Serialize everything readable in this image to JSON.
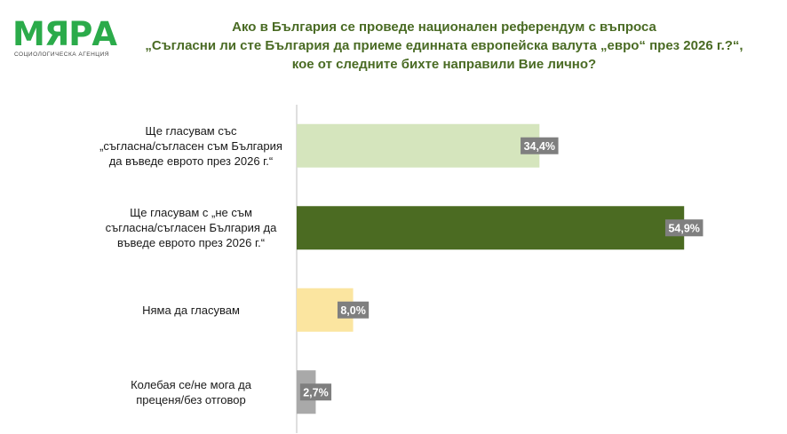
{
  "logo": {
    "word": "МЯРА",
    "subtitle": "СОЦИОЛОГИЧЕСКА АГЕНЦИЯ",
    "color": "#2bab4a"
  },
  "title_lines": [
    "Ако в България се проведе национален референдум с въпроса",
    "„Съгласни ли сте България да приеме единната европейска валута „евро“ през 2026 г.?“,",
    "кое от следните бихте направили Вие лично?"
  ],
  "title_color": "#4a6b24",
  "chart_data": {
    "type": "bar",
    "orientation": "horizontal",
    "categories": [
      "Ще гласувам със „съгласна/съгласен съм България да въведе еврото през 2026 г.“",
      "Ще гласувам с „не съм съгласна/съгласен България да въведе еврото през 2026 г.“",
      "Няма да гласувам",
      "Колебая се/не мога да преценя/без отговор"
    ],
    "category_lines": [
      [
        "Ще гласувам със",
        "„съгласна/съгласен съм България",
        "да въведе еврото през 2026 г.“"
      ],
      [
        "Ще гласувам с „не съм",
        "съгласна/съгласен България да",
        "въведе еврото през 2026 г.“"
      ],
      [
        "Няма да гласувам"
      ],
      [
        "Колебая се/не мога да",
        "преценя/без отговор"
      ]
    ],
    "values": [
      34.4,
      54.9,
      8.0,
      2.7
    ],
    "value_labels": [
      "34,4%",
      "54,9%",
      "8,0%",
      "2,7%"
    ],
    "colors": [
      "#d5e5bd",
      "#4b6b22",
      "#fbe5a0",
      "#a9a9a9"
    ],
    "label_box_color": "#7f7f7f",
    "unit": "%",
    "xlim": [
      0,
      55
    ],
    "grid": false,
    "legend": "none"
  }
}
